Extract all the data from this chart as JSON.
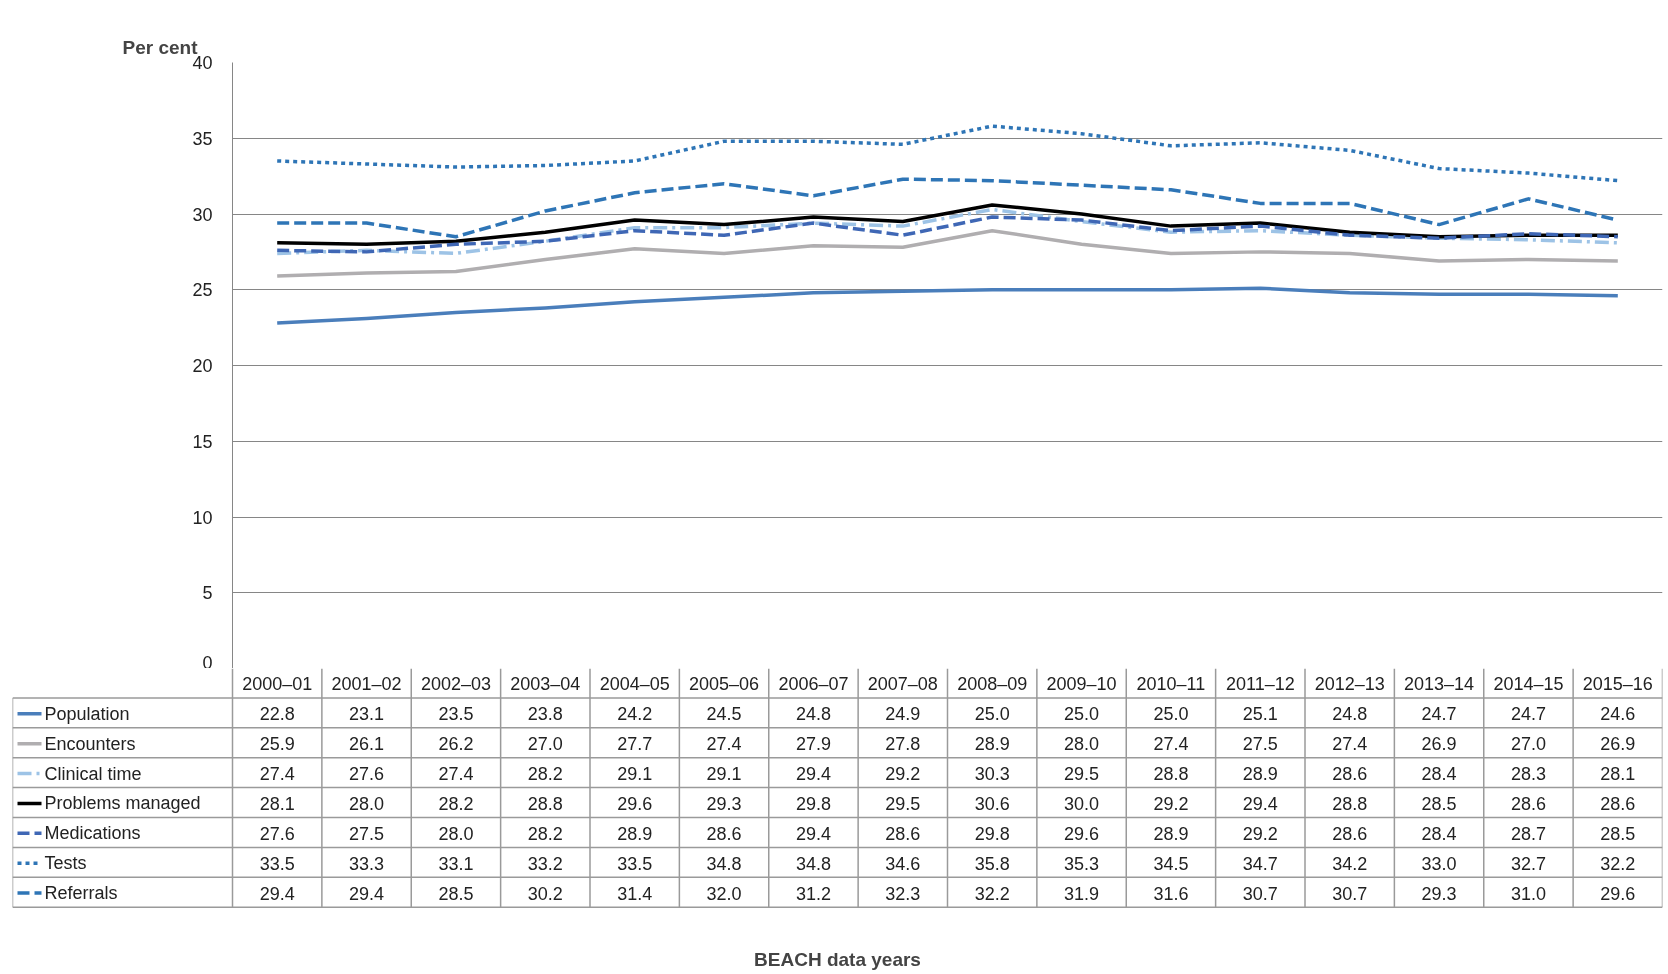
{
  "chart_data": {
    "type": "line",
    "ylabel": "Per cent",
    "annotations": [
      "BEACH data years"
    ],
    "categories": [
      "2000–01",
      "2001–02",
      "2002–03",
      "2003–04",
      "2004–05",
      "2005–06",
      "2006–07",
      "2007–08",
      "2008–09",
      "2009–10",
      "2010–11",
      "2011–12",
      "2012–13",
      "2013–14",
      "2014–15",
      "2015–16"
    ],
    "ylim": [
      0,
      40
    ],
    "yticks": [
      0,
      5,
      10,
      15,
      20,
      25,
      30,
      35,
      40
    ],
    "grid": "y",
    "legend": "bottom left",
    "series": [
      {
        "name": "Population",
        "color": "#4a7ebb",
        "line_style": "solid",
        "values": [
          22.8,
          23.1,
          23.5,
          23.8,
          24.2,
          24.5,
          24.8,
          24.9,
          25.0,
          25.0,
          25.0,
          25.1,
          24.8,
          24.7,
          24.7,
          24.6
        ],
        "value_labels": [
          "22.8",
          "23.1",
          "23.5",
          "23.8",
          "24.2",
          "24.5",
          "24.8",
          "24.9",
          "25.0",
          "25.0",
          "25.0",
          "25.1",
          "24.8",
          "24.7",
          "24.7",
          "24.6"
        ]
      },
      {
        "name": "Encounters",
        "color": "#b0aeb0",
        "line_style": "solid",
        "values": [
          25.9,
          26.1,
          26.2,
          27.0,
          27.7,
          27.4,
          27.9,
          27.8,
          28.9,
          28.0,
          27.4,
          27.5,
          27.4,
          26.9,
          27.0,
          26.9
        ],
        "value_labels": [
          "25.9",
          "26.1",
          "26.2",
          "27.0",
          "27.7",
          "27.4",
          "27.9",
          "27.8",
          "28.9",
          "28.0",
          "27.4",
          "27.5",
          "27.4",
          "26.9",
          "27.0",
          "26.9"
        ]
      },
      {
        "name": "Clinical time",
        "color": "#9dc3e6",
        "line_style": "dashdot",
        "values": [
          27.4,
          27.6,
          27.4,
          28.2,
          29.1,
          29.1,
          29.4,
          29.2,
          30.3,
          29.5,
          28.8,
          28.9,
          28.6,
          28.4,
          28.3,
          28.1
        ],
        "value_labels": [
          "27.4",
          "27.6",
          "27.4",
          "28.2",
          "29.1",
          "29.1",
          "29.4",
          "29.2",
          "30.3",
          "29.5",
          "28.8",
          "28.9",
          "28.6",
          "28.4",
          "28.3",
          "28.1"
        ]
      },
      {
        "name": "Problems managed",
        "color": "#000000",
        "line_style": "solid",
        "values": [
          28.1,
          28.0,
          28.2,
          28.8,
          29.6,
          29.3,
          29.8,
          29.5,
          30.6,
          30.0,
          29.2,
          29.4,
          28.8,
          28.5,
          28.6,
          28.6
        ],
        "value_labels": [
          "28.1",
          "28.0",
          "28.2",
          "28.8",
          "29.6",
          "29.3",
          "29.8",
          "29.5",
          "30.6",
          "30.0",
          "29.2",
          "29.4",
          "28.8",
          "28.5",
          "28.6",
          "28.6"
        ]
      },
      {
        "name": "Medications",
        "color": "#3f67b5",
        "line_style": "dashed",
        "values": [
          27.6,
          27.5,
          28.0,
          28.2,
          28.9,
          28.6,
          29.4,
          28.6,
          29.8,
          29.6,
          28.9,
          29.2,
          28.6,
          28.4,
          28.7,
          28.5
        ],
        "value_labels": [
          "27.6",
          "27.5",
          "28.0",
          "28.2",
          "28.9",
          "28.6",
          "29.4",
          "28.6",
          "29.8",
          "29.6",
          "28.9",
          "29.2",
          "28.6",
          "28.4",
          "28.7",
          "28.5"
        ]
      },
      {
        "name": "Tests",
        "color": "#2e75b6",
        "line_style": "dotted",
        "values": [
          33.5,
          33.3,
          33.1,
          33.2,
          33.5,
          34.8,
          34.8,
          34.6,
          35.8,
          35.3,
          34.5,
          34.7,
          34.2,
          33.0,
          32.7,
          32.2
        ],
        "value_labels": [
          "33.5",
          "33.3",
          "33.1",
          "33.2",
          "33.5",
          "34.8",
          "34.8",
          "34.6",
          "35.8",
          "35.3",
          "34.5",
          "34.7",
          "34.2",
          "33.0",
          "32.7",
          "32.2"
        ]
      },
      {
        "name": "Referrals",
        "color": "#2e75b6",
        "line_style": "dashed",
        "values": [
          29.4,
          29.4,
          28.5,
          30.2,
          31.4,
          32.0,
          31.2,
          32.3,
          32.2,
          31.9,
          31.6,
          30.7,
          30.7,
          29.3,
          31.0,
          29.6
        ],
        "value_labels": [
          "29.4",
          "29.4",
          "28.5",
          "30.2",
          "31.4",
          "32.0",
          "31.2",
          "32.3",
          "32.2",
          "31.9",
          "31.6",
          "30.7",
          "30.7",
          "29.3",
          "31.0",
          "29.6"
        ]
      }
    ]
  }
}
